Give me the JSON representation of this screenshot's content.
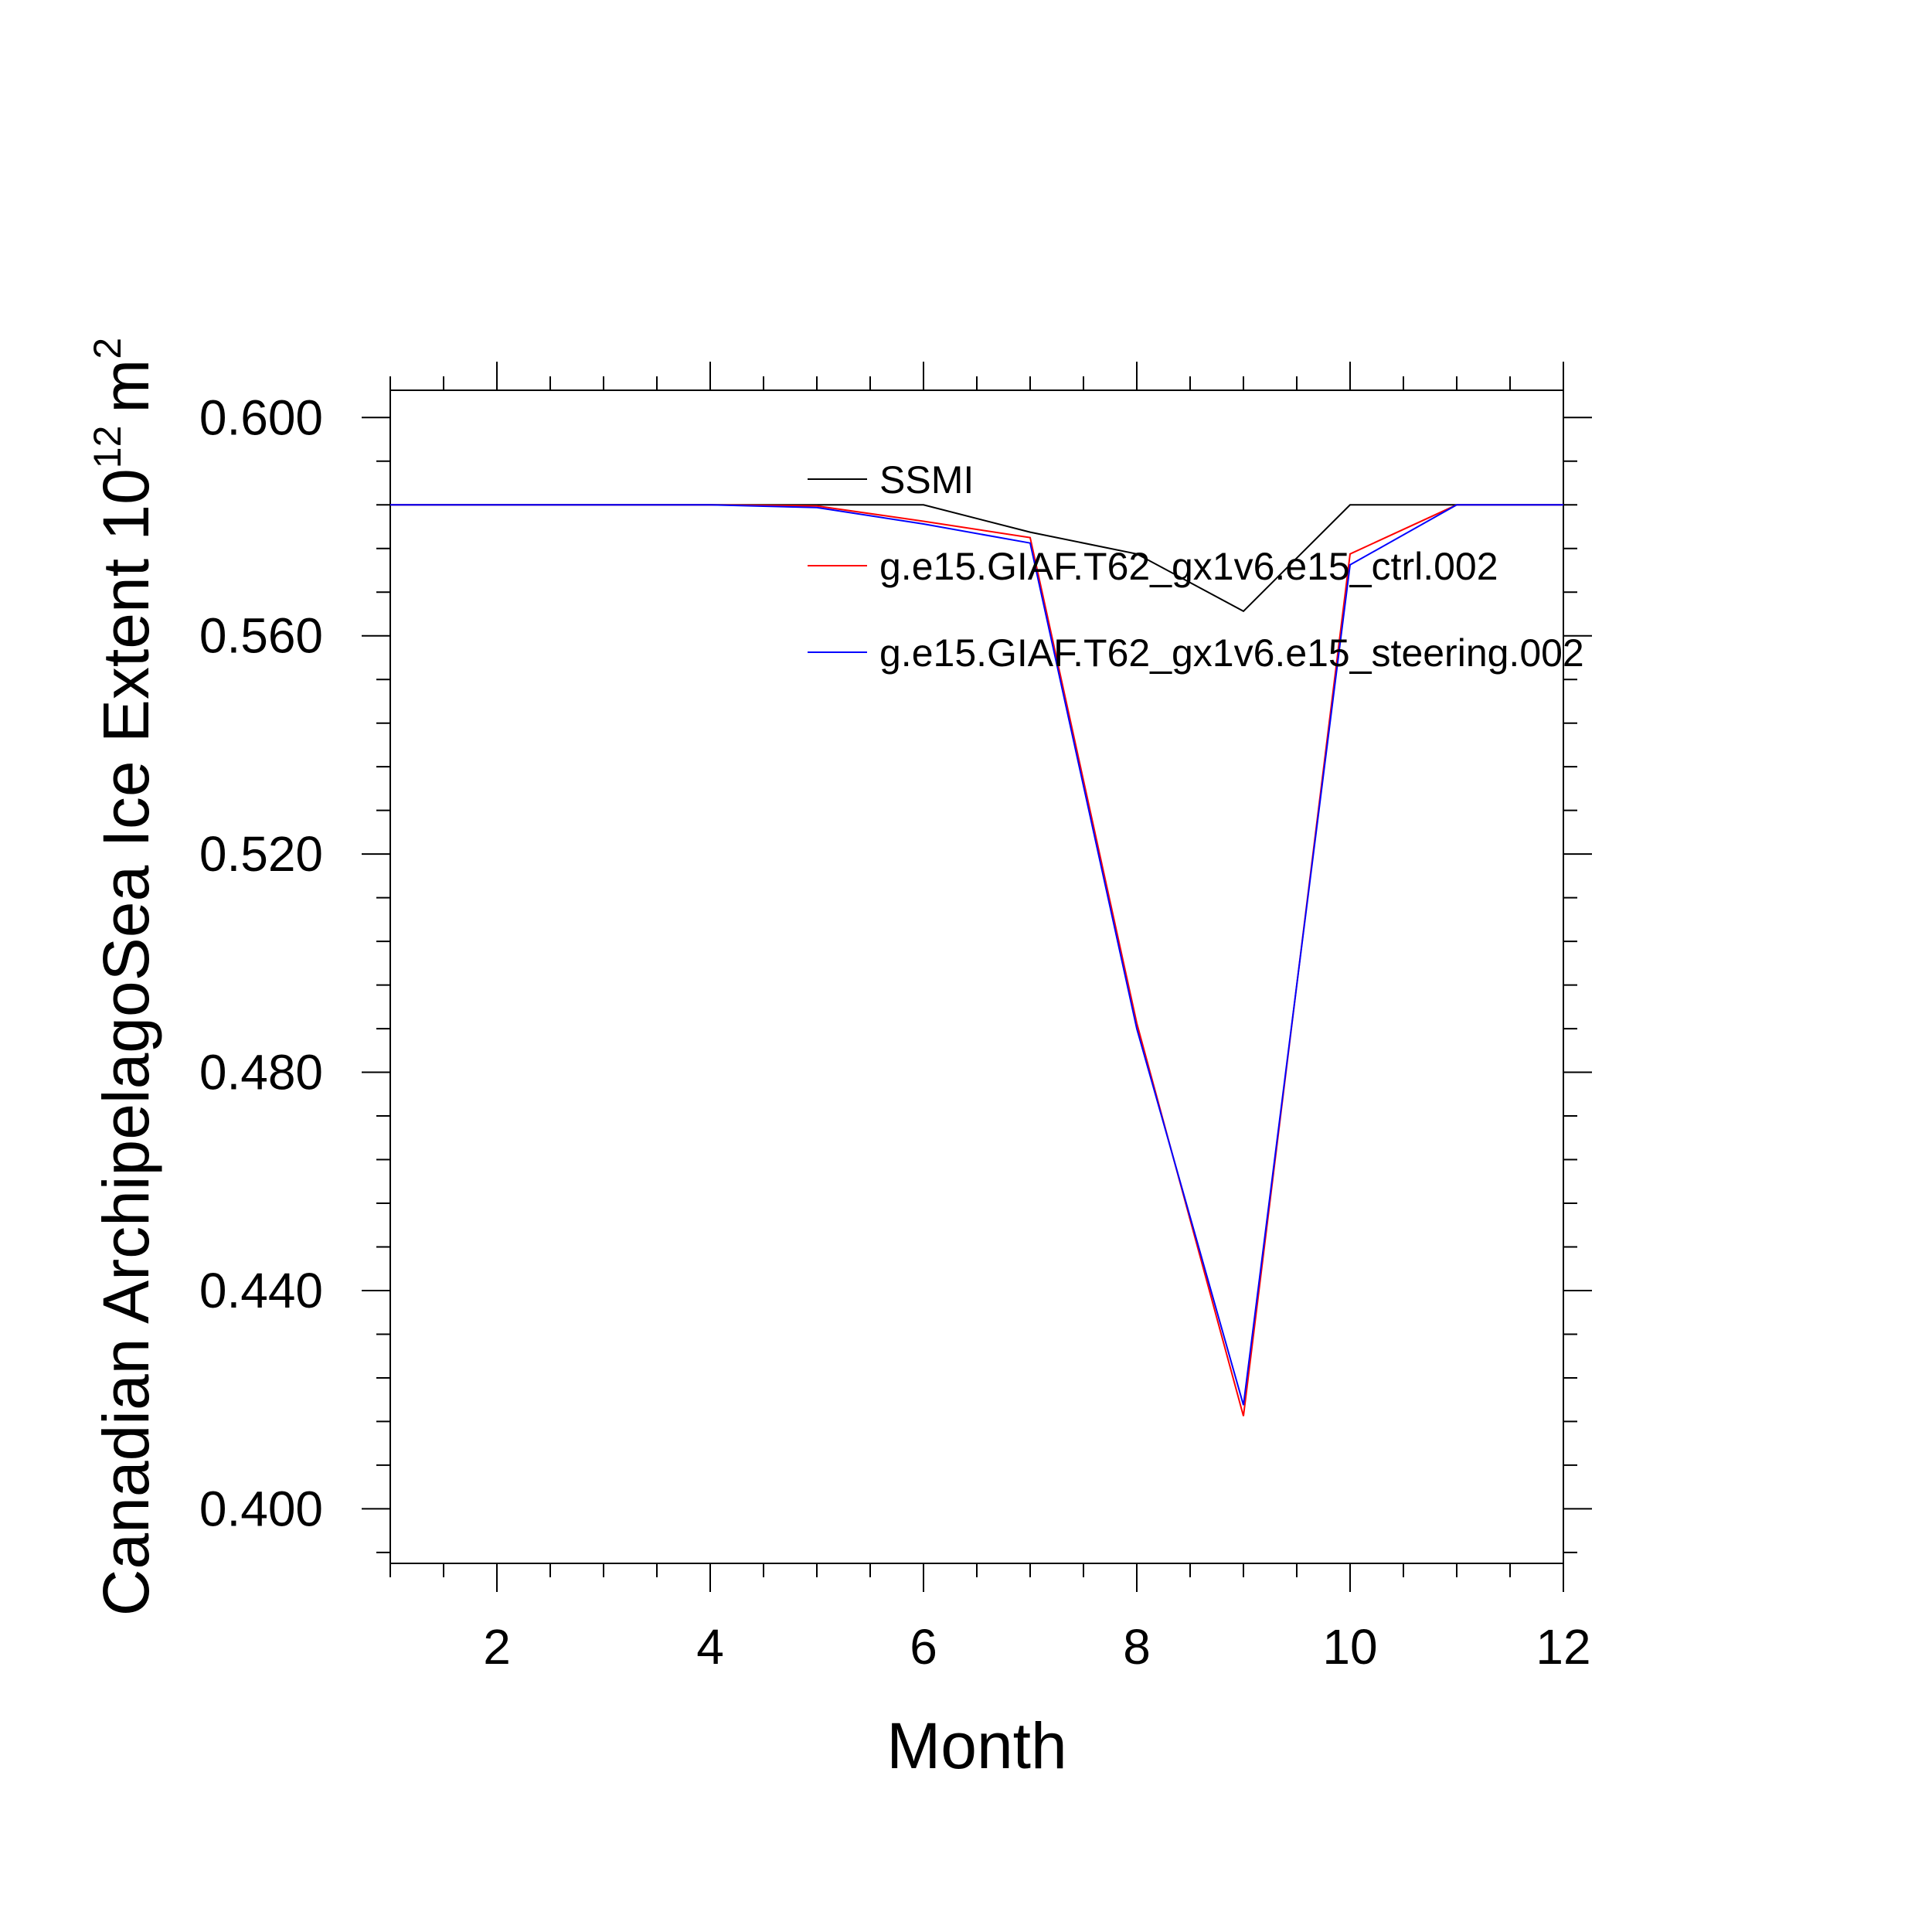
{
  "chart_data": {
    "type": "line",
    "title": "",
    "xlabel": "Month",
    "ylabel": "Canadian ArchipelagoSea Ice Extent 10",
    "ylabel_sup": "12",
    "ylabel_unit": "m",
    "ylabel_unit_sup": "2",
    "xlim": [
      1,
      12
    ],
    "ylim": [
      0.39,
      0.605
    ],
    "x_ticks": [
      2,
      4,
      6,
      8,
      10,
      12
    ],
    "x_tick_labels": [
      "2",
      "4",
      "6",
      "8",
      "10",
      "12"
    ],
    "y_ticks": [
      0.4,
      0.44,
      0.48,
      0.52,
      0.56,
      0.6
    ],
    "y_tick_labels": [
      "0.400",
      "0.440",
      "0.480",
      "0.520",
      "0.560",
      "0.600"
    ],
    "grid": false,
    "legend_position": "top-right",
    "x": [
      1,
      2,
      3,
      4,
      5,
      6,
      7,
      8,
      9,
      10,
      11,
      12
    ],
    "series": [
      {
        "name": "SSMI",
        "color": "#000000",
        "values": [
          0.584,
          0.584,
          0.584,
          0.584,
          0.584,
          0.584,
          0.579,
          0.575,
          0.5645,
          0.584,
          0.584,
          0.584
        ]
      },
      {
        "name": "g.e15.GIAF.T62_gx1v6.e15_ctrl.002",
        "color": "#ff0000",
        "values": [
          0.584,
          0.584,
          0.584,
          0.584,
          0.5838,
          0.581,
          0.578,
          0.489,
          0.417,
          0.575,
          0.584,
          0.584
        ]
      },
      {
        "name": "g.e15.GIAF.T62_gx1v6.e15_steering.002",
        "color": "#0000ff",
        "values": [
          0.584,
          0.584,
          0.584,
          0.584,
          0.5835,
          0.5805,
          0.577,
          0.488,
          0.419,
          0.573,
          0.584,
          0.584
        ]
      }
    ]
  }
}
